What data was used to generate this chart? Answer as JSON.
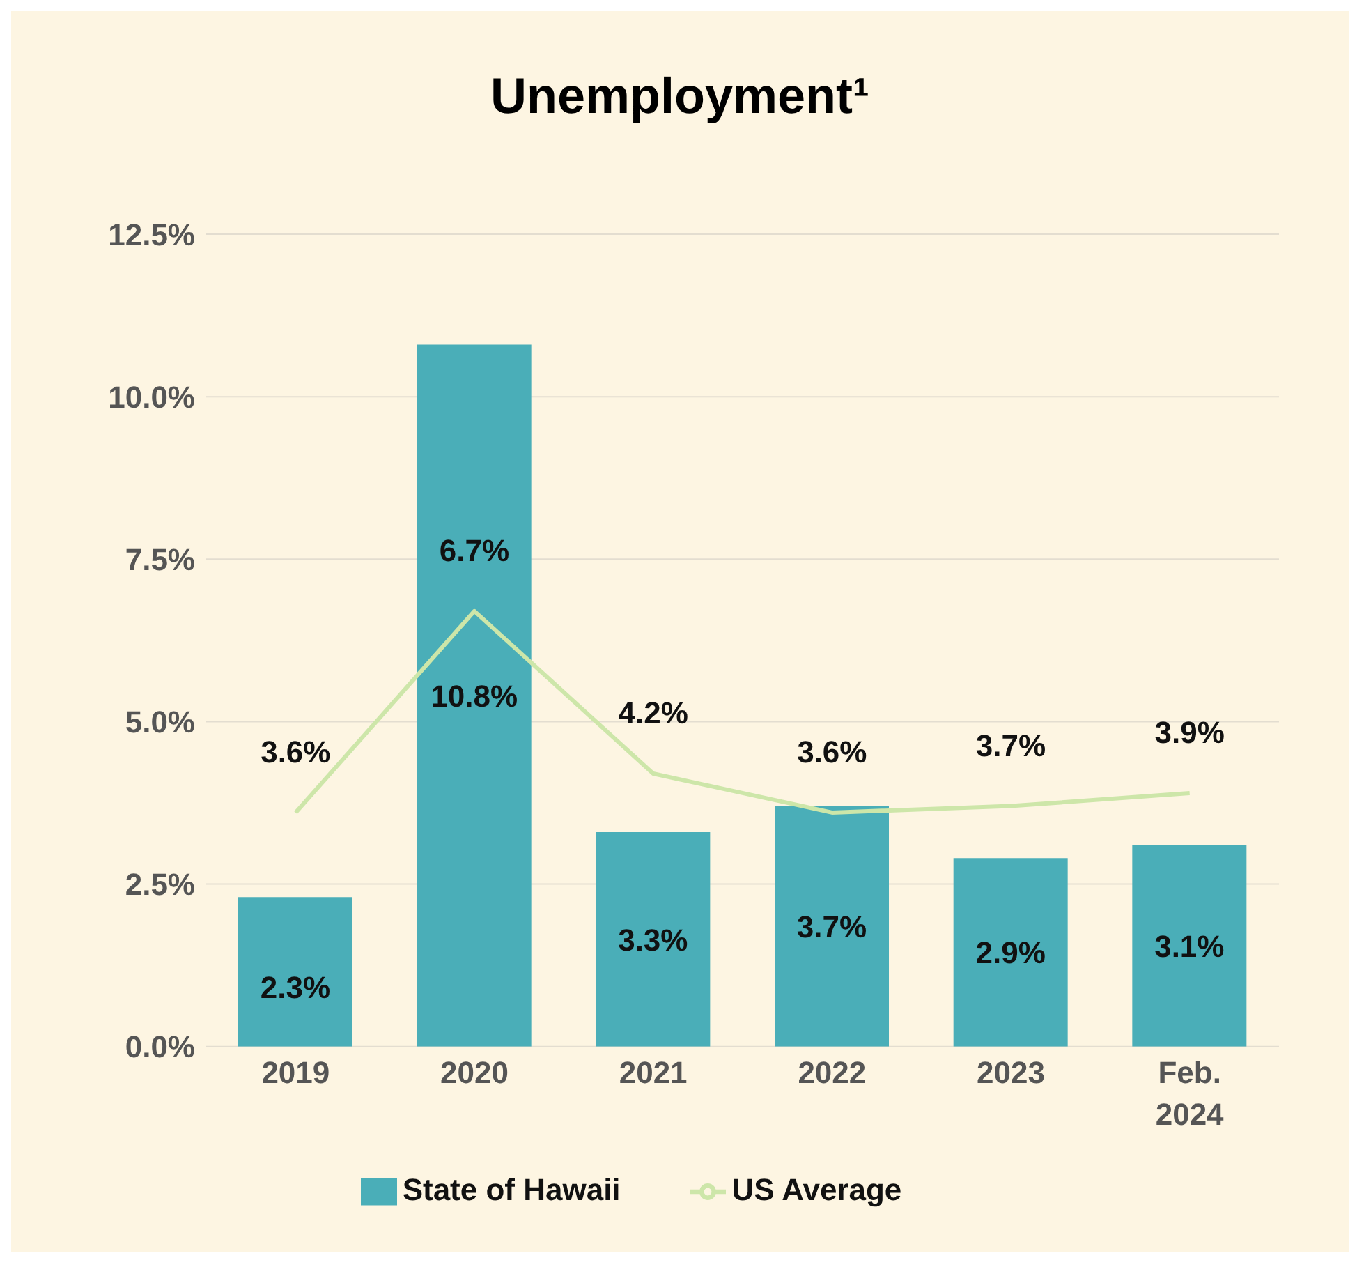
{
  "chart_data": {
    "type": "bar",
    "title": "Unemployment¹",
    "categories": [
      "2019",
      "2020",
      "2021",
      "2022",
      "2023",
      "Feb. 2024"
    ],
    "series": [
      {
        "name": "State of Hawaii",
        "color": "#4aaeb8",
        "values": [
          2.3,
          10.8,
          3.3,
          3.7,
          2.9,
          3.1
        ],
        "value_labels": [
          "2.3%",
          "10.8%",
          "3.3%",
          "3.7%",
          "2.9%",
          "3.1%"
        ]
      },
      {
        "name": "US Average",
        "type": "line",
        "color": "#cde6a9",
        "values": [
          3.6,
          6.7,
          4.2,
          3.6,
          3.7,
          3.9
        ],
        "value_labels": [
          "3.6%",
          "6.7%",
          "4.2%",
          "3.6%",
          "3.7%",
          "3.9%"
        ]
      }
    ],
    "ylim": [
      0,
      12.5
    ],
    "yticks": [
      {
        "value": 0,
        "label": "0.0%"
      },
      {
        "value": 2.5,
        "label": "2.5%"
      },
      {
        "value": 5,
        "label": "5.0%"
      },
      {
        "value": 7.5,
        "label": "7.5%"
      },
      {
        "value": 10,
        "label": "10.0%"
      },
      {
        "value": 12.5,
        "label": "12.5%"
      }
    ],
    "grid": "y",
    "legend": "bottom",
    "marker": "none"
  }
}
